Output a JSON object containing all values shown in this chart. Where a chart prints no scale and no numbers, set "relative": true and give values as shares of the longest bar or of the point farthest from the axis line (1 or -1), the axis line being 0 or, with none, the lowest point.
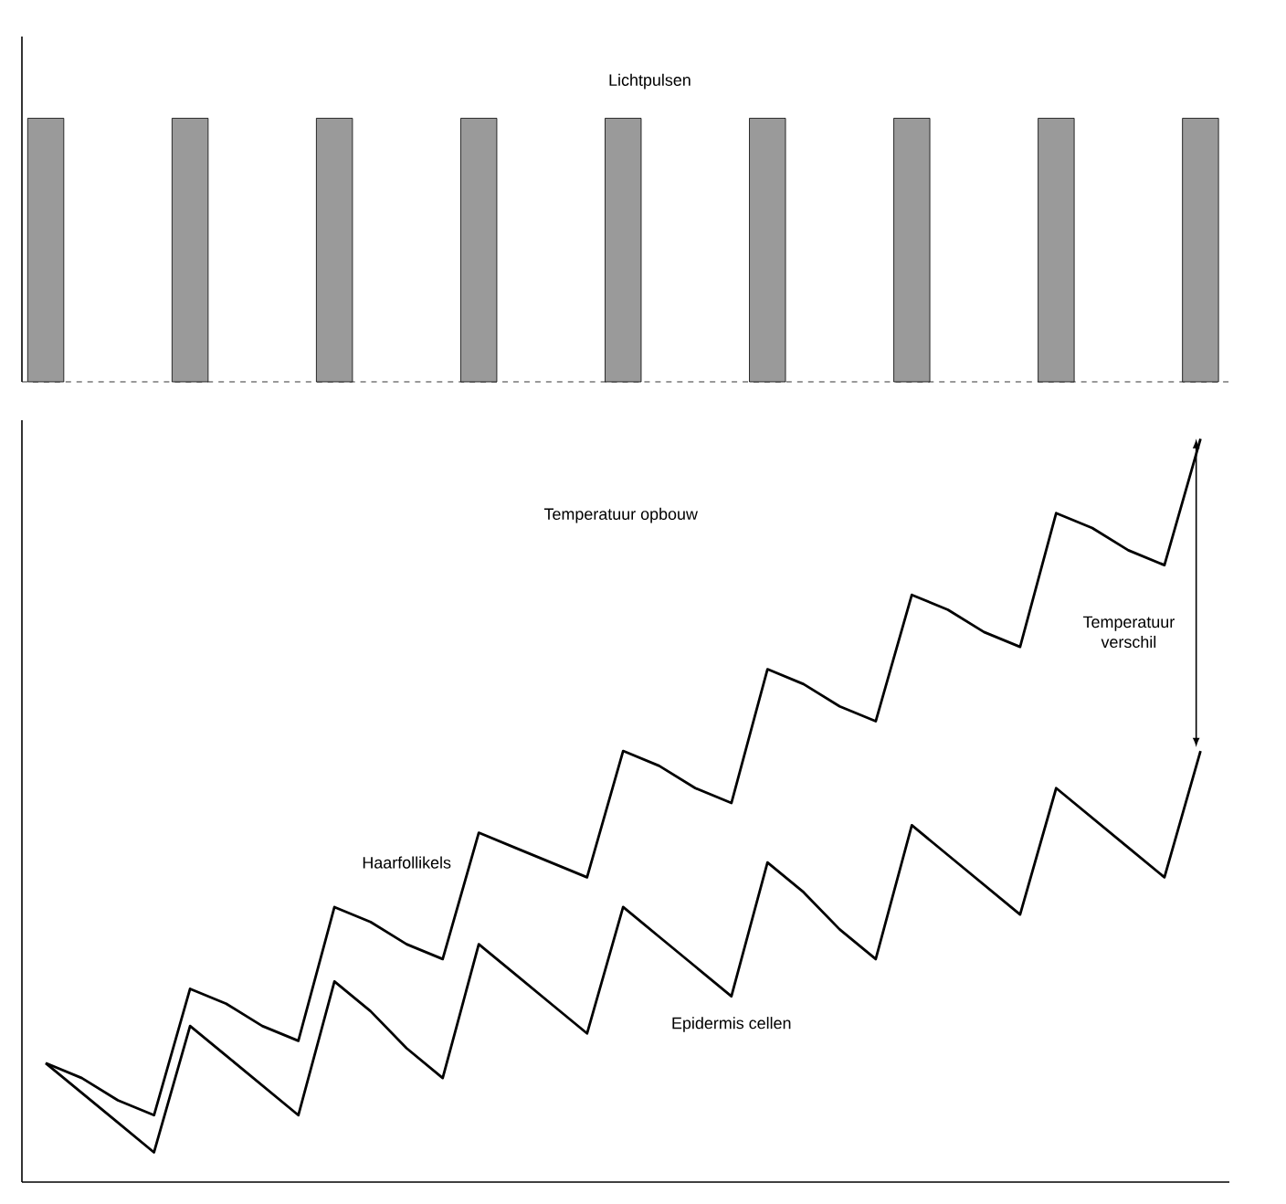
{
  "chart_data": [
    {
      "type": "bar",
      "title": "Lichtpulsen",
      "categories": [
        null,
        null,
        null,
        null,
        null,
        null,
        null,
        null,
        null
      ],
      "values": [
        1,
        1,
        1,
        1,
        1,
        1,
        1,
        1,
        1
      ],
      "color": "#9a9a9a",
      "relative": true
    },
    {
      "type": "line",
      "title": "Temperatuur opbouw",
      "relative": true,
      "categories": [
        null,
        null,
        null,
        null,
        null,
        null,
        null,
        null,
        null,
        null,
        null,
        null,
        null,
        null,
        null,
        null,
        null,
        null,
        null,
        null,
        null,
        null,
        null,
        null,
        null,
        null,
        null,
        null,
        null,
        null,
        null,
        null,
        null
      ],
      "series": [
        {
          "name": "Haarfollikels",
          "color": "#000000",
          "values": [
            0.16,
            0.14,
            0.11,
            0.09,
            0.26,
            0.24,
            0.21,
            0.19,
            0.37,
            0.35,
            0.32,
            0.3,
            0.47,
            0.45,
            0.43,
            0.41,
            0.58,
            0.56,
            0.53,
            0.51,
            0.69,
            0.67,
            0.64,
            0.62,
            0.79,
            0.77,
            0.74,
            0.72,
            0.9,
            0.88,
            0.85,
            0.83,
            1.0
          ]
        },
        {
          "name": "Epidermis cellen",
          "color": "#000000",
          "values": [
            0.16,
            0.12,
            0.08,
            0.04,
            0.21,
            0.17,
            0.13,
            0.09,
            0.27,
            0.23,
            0.18,
            0.14,
            0.32,
            0.28,
            0.24,
            0.2,
            0.37,
            0.33,
            0.29,
            0.25,
            0.43,
            0.39,
            0.34,
            0.3,
            0.48,
            0.44,
            0.4,
            0.36,
            0.53,
            0.49,
            0.45,
            0.41,
            0.58
          ]
        }
      ],
      "annotations": [
        "Temperatuur verschil"
      ]
    }
  ]
}
